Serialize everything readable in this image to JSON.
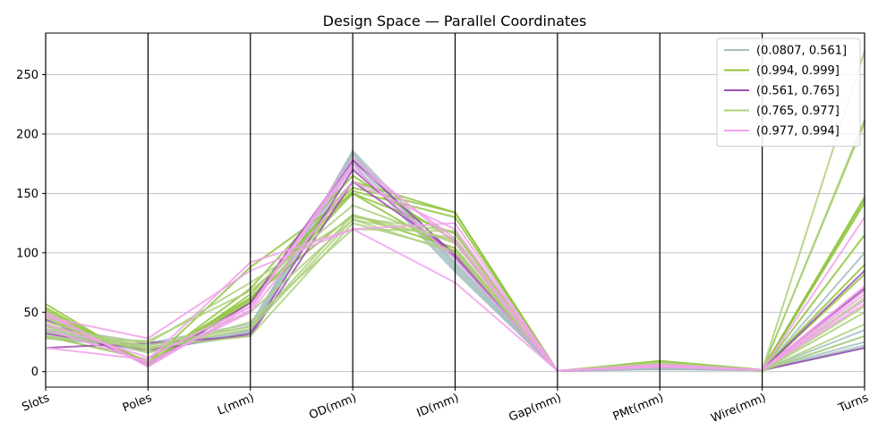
{
  "chart_data": {
    "type": "parallel_coordinates",
    "title": "Design Space — Parallel Coordinates",
    "dimensions": [
      "Slots",
      "Poles",
      "L(mm)",
      "OD(mm)",
      "ID(mm)",
      "Gap(mm)",
      "PMt(mm)",
      "Wire(mm)",
      "Turns"
    ],
    "ylim": [
      -13,
      285
    ],
    "yticks": [
      0,
      50,
      100,
      150,
      200,
      250
    ],
    "grid": "horizontal and vertical",
    "legend_position": "upper-right",
    "legend": [
      {
        "label": "(0.0807, 0.561]",
        "color": "#a3bfc0"
      },
      {
        "label": "(0.994, 0.999]",
        "color": "#8fc43d"
      },
      {
        "label": "(0.561, 0.765]",
        "color": "#9b4fb0"
      },
      {
        "label": "(0.765, 0.977]",
        "color": "#aed07e"
      },
      {
        "label": "(0.977, 0.994]",
        "color": "#f0a2ea"
      }
    ],
    "series": [
      {
        "group": 0,
        "values": [
          36,
          20,
          35,
          186,
          95,
          0.8,
          2,
          1.2,
          20
        ],
        "color": "#a3bfc0"
      },
      {
        "group": 0,
        "values": [
          33,
          22,
          38,
          183,
          88,
          0.8,
          3,
          1.5,
          25
        ],
        "color": "#a3bfc0"
      },
      {
        "group": 0,
        "values": [
          30,
          18,
          31,
          175,
          84,
          0.7,
          4,
          1.0,
          30
        ],
        "color": "#a3bfc0"
      },
      {
        "group": 0,
        "values": [
          38,
          24,
          40,
          180,
          92,
          0.9,
          5,
          1.4,
          35
        ],
        "color": "#a3bfc0"
      },
      {
        "group": 0,
        "values": [
          35,
          16,
          34,
          178,
          86,
          0.6,
          3,
          1.1,
          100
        ],
        "color": "#a3bfc0"
      },
      {
        "group": 0,
        "values": [
          28,
          20,
          33,
          184,
          90,
          0.8,
          2,
          1.3,
          22
        ],
        "color": "#a3bfc0"
      },
      {
        "group": 1,
        "values": [
          57,
          5,
          65,
          155,
          134,
          0.5,
          8,
          1.5,
          147
        ],
        "color": "#8fc43d"
      },
      {
        "group": 1,
        "values": [
          54,
          6,
          60,
          160,
          134,
          0.5,
          9,
          1.6,
          145
        ],
        "color": "#8fc43d"
      },
      {
        "group": 1,
        "values": [
          50,
          5,
          62,
          152,
          130,
          0.5,
          8,
          1.4,
          142
        ],
        "color": "#8fc43d"
      },
      {
        "group": 1,
        "values": [
          48,
          8,
          58,
          150,
          116,
          0.5,
          8,
          1.5,
          90
        ],
        "color": "#8fc43d"
      },
      {
        "group": 1,
        "values": [
          52,
          6,
          70,
          165,
          110,
          0.6,
          7,
          1.6,
          115
        ],
        "color": "#8fc43d"
      },
      {
        "group": 1,
        "values": [
          46,
          7,
          88,
          150,
          100,
          0.5,
          8,
          1.5,
          210
        ],
        "color": "#8fc43d"
      },
      {
        "group": 1,
        "values": [
          30,
          10,
          62,
          132,
          104,
          0.5,
          9,
          1.4,
          82
        ],
        "color": "#8fc43d"
      },
      {
        "group": 2,
        "values": [
          20,
          24,
          30,
          160,
          100,
          0.7,
          5,
          1.2,
          20
        ],
        "color": "#9b4fb0"
      },
      {
        "group": 2,
        "values": [
          32,
          18,
          32,
          170,
          96,
          0.6,
          4,
          1.3,
          85
        ],
        "color": "#9b4fb0"
      },
      {
        "group": 2,
        "values": [
          44,
          6,
          58,
          178,
          98,
          0.7,
          6,
          1.1,
          70
        ],
        "color": "#9b4fb0"
      },
      {
        "group": 3,
        "values": [
          34,
          22,
          38,
          132,
          110,
          0.6,
          6,
          0.8,
          55
        ],
        "color": "#aed07e"
      },
      {
        "group": 3,
        "values": [
          30,
          20,
          30,
          125,
          102,
          0.6,
          7,
          0.9,
          270
        ],
        "color": "#aed07e"
      },
      {
        "group": 3,
        "values": [
          40,
          16,
          42,
          120,
          118,
          0.6,
          8,
          1.0,
          40
        ],
        "color": "#aed07e"
      },
      {
        "group": 3,
        "values": [
          36,
          24,
          75,
          130,
          118,
          0.6,
          7,
          0.8,
          212
        ],
        "color": "#aed07e"
      },
      {
        "group": 3,
        "values": [
          42,
          18,
          50,
          128,
          112,
          0.6,
          7,
          0.9,
          50
        ],
        "color": "#aed07e"
      },
      {
        "group": 3,
        "values": [
          28,
          26,
          68,
          140,
          108,
          0.6,
          6,
          1.0,
          30
        ],
        "color": "#aed07e"
      },
      {
        "group": 3,
        "values": [
          38,
          20,
          36,
          128,
          100,
          0.6,
          7,
          0.9,
          62
        ],
        "color": "#aed07e"
      },
      {
        "group": 4,
        "values": [
          48,
          6,
          52,
          180,
          108,
          0.8,
          5,
          1.6,
          60
        ],
        "color": "#f0a2ea"
      },
      {
        "group": 4,
        "values": [
          50,
          4,
          55,
          175,
          112,
          0.8,
          4,
          1.5,
          65
        ],
        "color": "#f0a2ea"
      },
      {
        "group": 4,
        "values": [
          20,
          10,
          92,
          120,
          125,
          0.7,
          6,
          1.4,
          130
        ],
        "color": "#f0a2ea"
      },
      {
        "group": 4,
        "values": [
          46,
          28,
          85,
          120,
          75,
          0.7,
          5,
          1.3,
          68
        ],
        "color": "#f0a2ea"
      },
      {
        "group": 4,
        "values": [
          36,
          8,
          50,
          160,
          120,
          0.8,
          5,
          1.5,
          72
        ],
        "color": "#f0a2ea"
      },
      {
        "group": 4,
        "values": [
          40,
          12,
          55,
          172,
          95,
          0.7,
          4,
          1.6,
          57
        ],
        "color": "#f0a2ea"
      }
    ]
  }
}
